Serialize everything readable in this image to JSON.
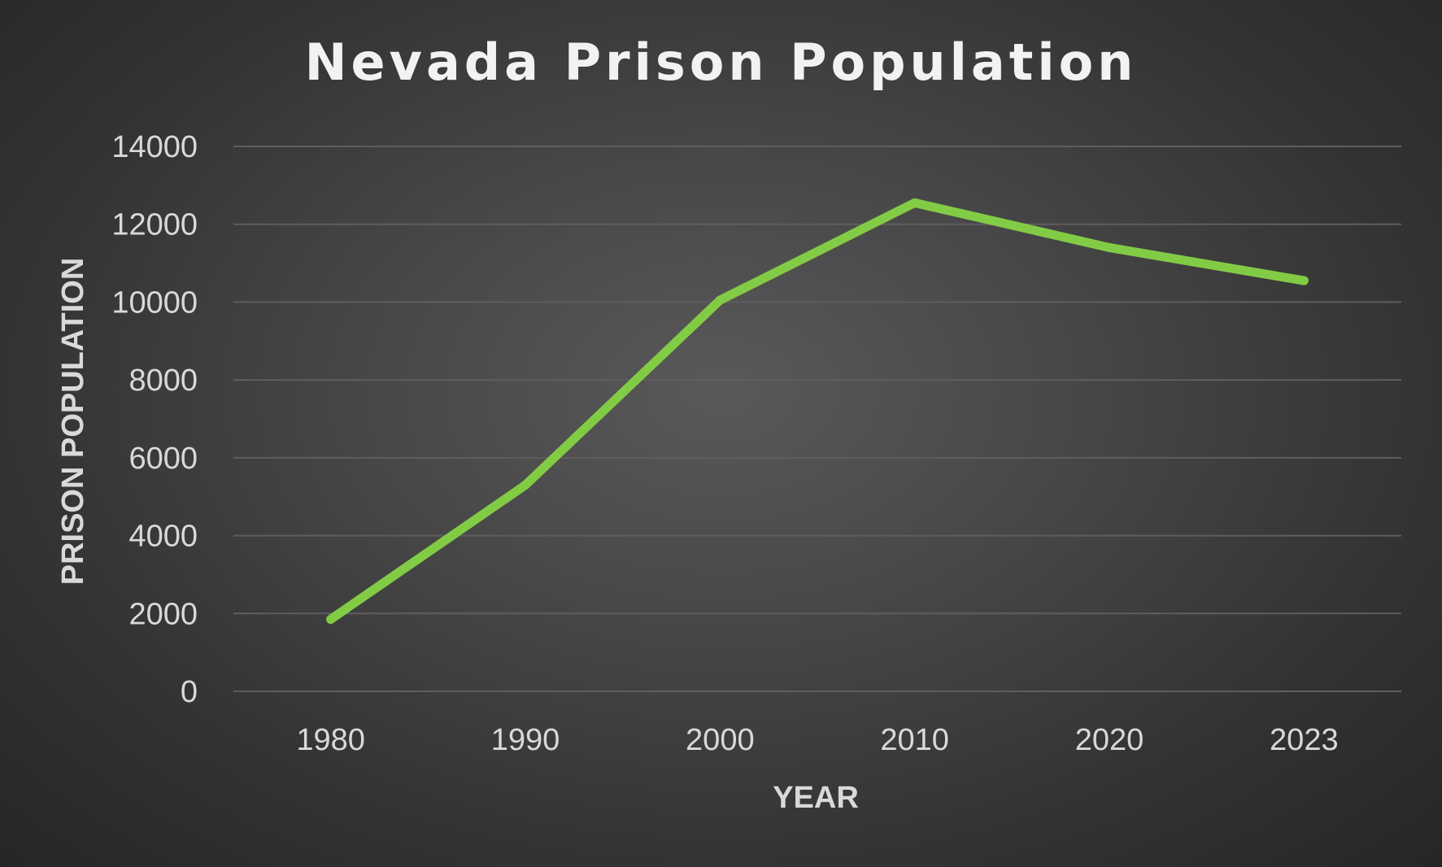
{
  "chart_data": {
    "type": "line",
    "title": "Nevada Prison Population",
    "xlabel": "YEAR",
    "ylabel": "PRISON POPULATION",
    "categories": [
      "1980",
      "1990",
      "2000",
      "2010",
      "2020",
      "2023"
    ],
    "series": [
      {
        "values": [
          1850,
          5300,
          10050,
          12550,
          11400,
          10550
        ],
        "color": "#82cc45"
      }
    ],
    "ylim": [
      0,
      14000
    ],
    "yticks": [
      0,
      2000,
      4000,
      6000,
      8000,
      10000,
      12000,
      14000
    ],
    "grid": true,
    "legend": "none"
  },
  "colors": {
    "background": "#474747",
    "gridline": "#5e5e5e",
    "text": "#d9d9d9",
    "title": "#f2f2f2",
    "line": "#82cc45"
  }
}
